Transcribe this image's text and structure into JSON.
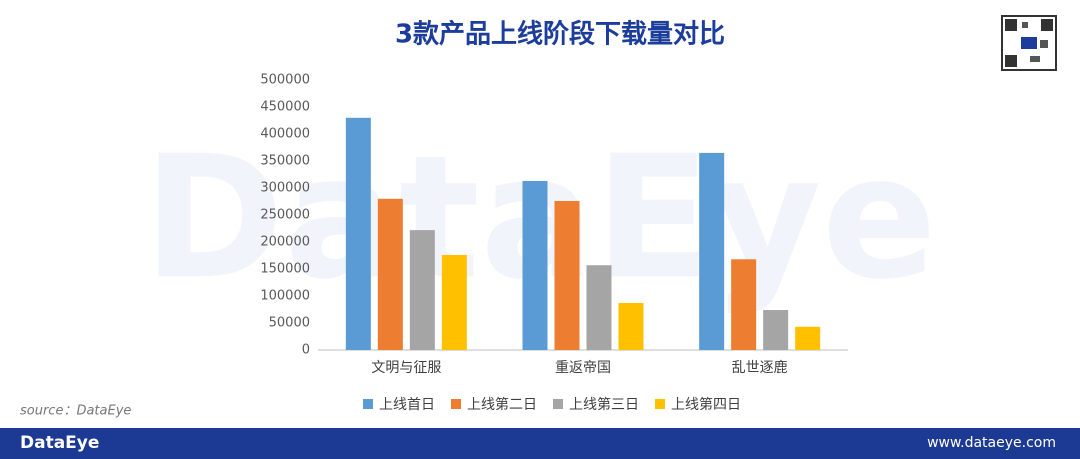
{
  "chart_data": {
    "type": "bar",
    "title": "3款产品上线阶段下载量对比",
    "categories": [
      "文明与征服",
      "重返帝国",
      "乱世逐鹿"
    ],
    "series": [
      {
        "name": "上线首日",
        "color": "#5b9bd5",
        "values": [
          430000,
          313000,
          365000
        ]
      },
      {
        "name": "上线第二日",
        "color": "#ed7d31",
        "values": [
          280000,
          276000,
          168000
        ]
      },
      {
        "name": "上线第三日",
        "color": "#a5a5a5",
        "values": [
          222000,
          157000,
          74000
        ]
      },
      {
        "name": "上线第四日",
        "color": "#ffc000",
        "values": [
          176000,
          87000,
          43000
        ]
      }
    ],
    "ylim": [
      0,
      500000
    ],
    "yticks": [
      0,
      50000,
      100000,
      150000,
      200000,
      250000,
      300000,
      350000,
      400000,
      450000,
      500000
    ],
    "grid": false,
    "legend": "bottom"
  },
  "watermark": "DataEye",
  "source": "source：DataEye",
  "footer": {
    "brand": "DataEye",
    "url": "www.dataeye.com"
  }
}
